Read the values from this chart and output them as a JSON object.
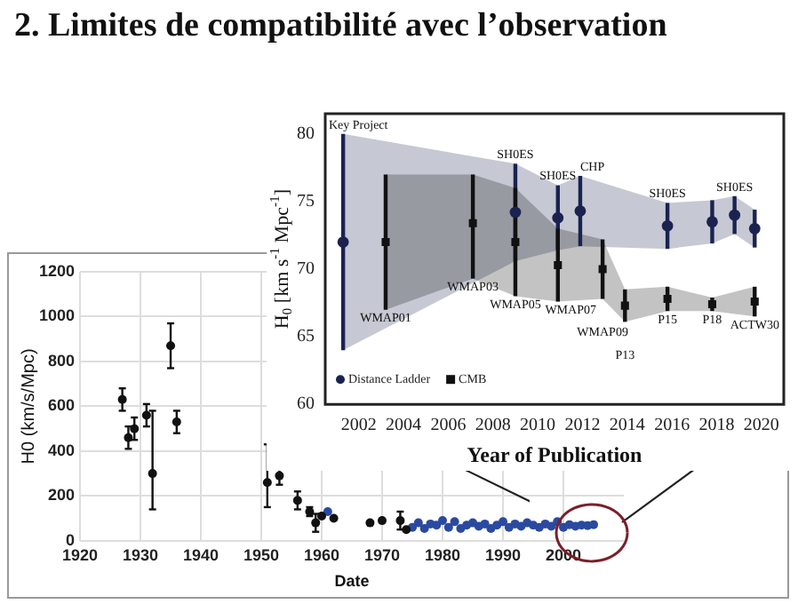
{
  "chart_data": [
    {
      "type": "scatter",
      "title": "2. Limites de compatibilité avec l’observation",
      "xlabel": "Date",
      "ylabel": "H0 (km/s/Mpc)",
      "xlim": [
        1920,
        2010
      ],
      "xticks": [
        1920,
        1930,
        1940,
        1950,
        1960,
        1970,
        1980,
        1990,
        2000
      ],
      "ylim": [
        0,
        1200
      ],
      "yticks": [
        0,
        200,
        400,
        600,
        800,
        1000,
        1200
      ],
      "grid": true,
      "legend": false,
      "marker": "circle",
      "series": [
        {
          "color": "#111111",
          "x": [
            1927,
            1928,
            1929,
            1931,
            1932,
            1935,
            1936,
            1951,
            1953,
            1956,
            1958,
            1959,
            1960,
            1962,
            1968,
            1970,
            1973,
            1974
          ],
          "values": [
            630,
            460,
            500,
            560,
            300,
            870,
            530,
            260,
            290,
            180,
            130,
            80,
            110,
            100,
            80,
            90,
            90,
            50
          ],
          "errors": [
            50,
            50,
            50,
            50,
            [
              140,
              580
            ],
            100,
            50,
            [
              150,
              430
            ],
            40,
            40,
            20,
            40,
            null,
            null,
            null,
            null,
            40,
            null
          ]
        },
        {
          "color": "#2a4aa0",
          "x": [
            1961,
            1975,
            1976,
            1977,
            1978,
            1979,
            1980,
            1981,
            1982,
            1983,
            1984,
            1985,
            1986,
            1987,
            1988,
            1989,
            1990,
            1991,
            1992,
            1993,
            1994,
            1995,
            1996,
            1997,
            1998,
            1999,
            2000,
            2001,
            2002,
            2003,
            2004,
            2005
          ],
          "values": [
            130,
            60,
            80,
            55,
            75,
            70,
            90,
            60,
            85,
            55,
            70,
            80,
            65,
            75,
            55,
            70,
            85,
            60,
            75,
            65,
            80,
            70,
            60,
            75,
            65,
            85,
            60,
            72,
            65,
            70,
            68,
            72
          ]
        }
      ]
    },
    {
      "type": "scatter",
      "xlabel": "Year of Publication",
      "ylabel": "H$_{0}$ [km s$^{-1}$ Mpc$^{-1}$]",
      "xlim": [
        2000.5,
        2021
      ],
      "xticks": [
        2002,
        2004,
        2006,
        2008,
        2010,
        2012,
        2014,
        2016,
        2018,
        2020
      ],
      "ylim": [
        60,
        81.5
      ],
      "yticks": [
        60,
        65,
        70,
        75,
        80
      ],
      "grid": false,
      "legend": "bottom left",
      "series": [
        {
          "name": "Distance Ladder",
          "color": "#1a2350",
          "marker": "circle",
          "x": [
            2001.3,
            2009.0,
            2010.9,
            2011.9,
            2015.8,
            2017.8,
            2018.8,
            2019.7
          ],
          "values": [
            72,
            74.2,
            73.8,
            74.3,
            73.2,
            73.5,
            74.0,
            73.0
          ],
          "errors": [
            8,
            3.6,
            2.4,
            2.6,
            1.7,
            1.6,
            1.4,
            1.4
          ],
          "lower": [
            64,
            70.6,
            71.4,
            71.7,
            71.5,
            71.9,
            72.6,
            71.6
          ],
          "upper": [
            80,
            77.8,
            76.2,
            76.9,
            74.9,
            75.1,
            75.4,
            74.4
          ]
        },
        {
          "name": "CMB",
          "color": "#111111",
          "marker": "square",
          "x": [
            2003.2,
            2007.1,
            2009.0,
            2010.9,
            2012.9,
            2013.9,
            2015.8,
            2017.8,
            2019.7
          ],
          "values": [
            72,
            73.4,
            72,
            70.3,
            70,
            67.3,
            67.8,
            67.4,
            67.6
          ],
          "errors": [
            5,
            [
              69.3,
              77
            ],
            4,
            2.7,
            2.2,
            1.2,
            0.9,
            0.5,
            1.1
          ],
          "lower": [
            67,
            69.3,
            68,
            67.6,
            67.8,
            66.1,
            66.9,
            66.9,
            66.5
          ],
          "upper": [
            77,
            77,
            76,
            73,
            72.2,
            68.5,
            68.7,
            67.9,
            68.7
          ]
        }
      ],
      "annotations": [
        {
          "text": "Key Project",
          "x": 2001.3,
          "y": 80
        },
        {
          "text": "WMAP01",
          "x": 2003.2,
          "y": 67
        },
        {
          "text": "WMAP03",
          "x": 2007.1,
          "y": 69.3
        },
        {
          "text": "SH0ES",
          "x": 2009.0,
          "y": 77.8
        },
        {
          "text": "WMAP05",
          "x": 2009.0,
          "y": 68
        },
        {
          "text": "SH0ES",
          "x": 2010.9,
          "y": 76.2
        },
        {
          "text": "WMAP07",
          "x": 2010.9,
          "y": 67.6
        },
        {
          "text": "CHP",
          "x": 2011.9,
          "y": 76.9
        },
        {
          "text": "WMAP09",
          "x": 2012.9,
          "y": 67.8
        },
        {
          "text": "P13",
          "x": 2013.9,
          "y": 66.1
        },
        {
          "text": "SH0ES",
          "x": 2015.8,
          "y": 74.9
        },
        {
          "text": "P15",
          "x": 2015.8,
          "y": 66.9
        },
        {
          "text": "P18",
          "x": 2017.8,
          "y": 66.9
        },
        {
          "text": "SH0ES",
          "x": 2018.8,
          "y": 75.4
        },
        {
          "text": "ACTW30",
          "x": 2019.7,
          "y": 66.5
        }
      ]
    }
  ]
}
